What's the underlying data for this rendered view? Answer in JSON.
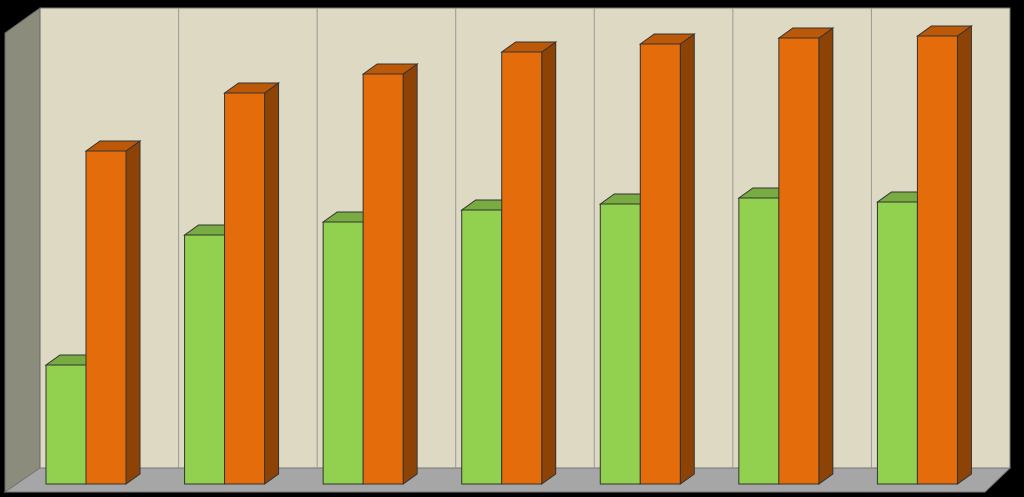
{
  "chart_data": {
    "type": "bar3d",
    "categories": [
      null,
      null,
      null,
      null,
      null,
      null,
      null
    ],
    "series": [
      {
        "color": "#92d050",
        "values": [
          119,
          249,
          262,
          274,
          280,
          286,
          282
        ]
      },
      {
        "color": "#e46c0a",
        "values": [
          333,
          391,
          410,
          432,
          440,
          446,
          448
        ]
      }
    ],
    "ylim": [
      0,
      476
    ]
  }
}
